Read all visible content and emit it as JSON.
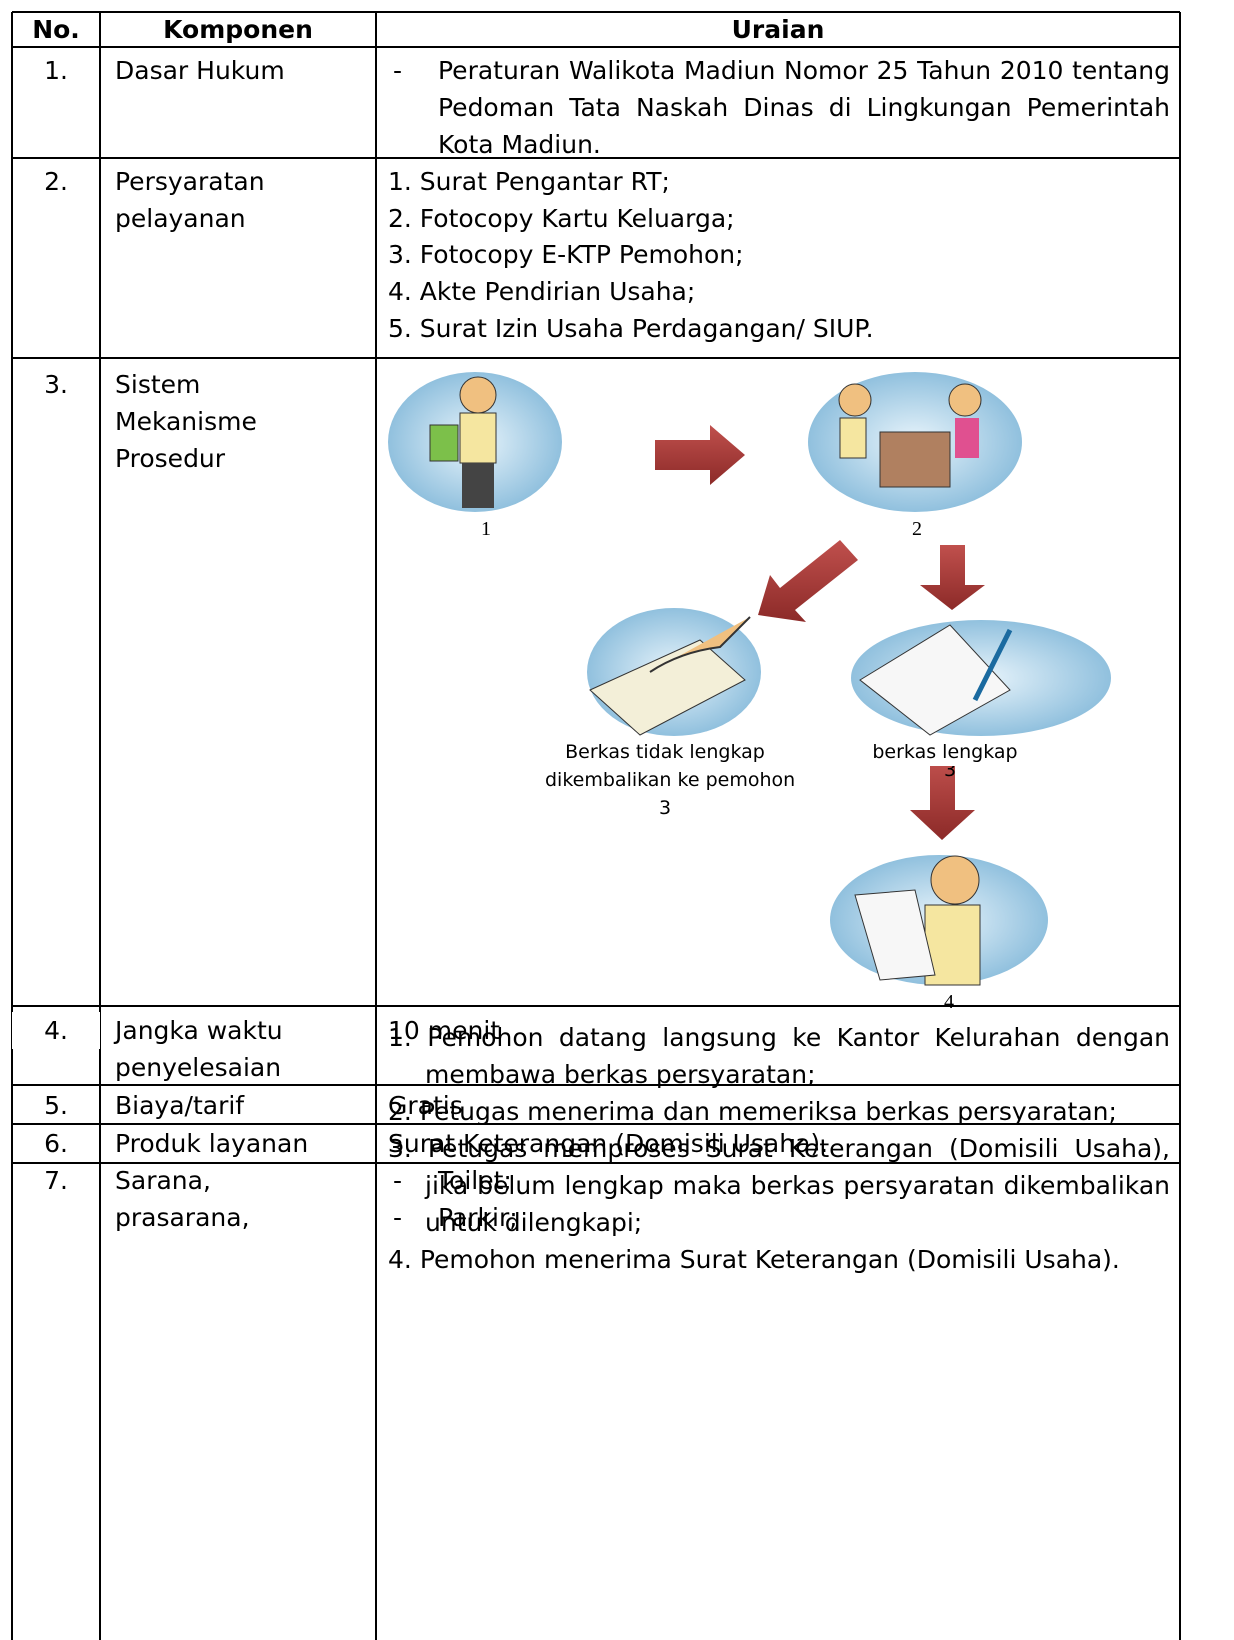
{
  "table": {
    "headers": [
      "No.",
      "Komponen",
      "Uraian"
    ],
    "rows": [
      {
        "no": "1.",
        "component": [
          "Dasar Hukum"
        ],
        "details": [
          {
            "bullet": "-",
            "text": "Peraturan Walikota Madiun Nomor 25 Tahun 2010 tentang Pedoman Tata Naskah Dinas di Lingkungan Pemerintah Kota Madiun."
          }
        ]
      },
      {
        "no": "2.",
        "component": [
          "Persyaratan",
          "pelayanan"
        ],
        "details": [
          "1. Surat  Pengantar RT;",
          "2. Fotocopy Kartu Keluarga;",
          "3. Fotocopy E-KTP Pemohon;",
          "4. Akte Pendirian Usaha;",
          "5. Surat Izin Usaha Perdagangan/ SIUP."
        ]
      },
      {
        "no": "3.",
        "component": [
          "Sistem",
          "Mekanisme",
          "Prosedur"
        ],
        "diagram": {
          "step1": "1",
          "step2": "2",
          "incomplete": [
            "Berkas tidak lengkap",
            "dikembalikan ke pemohon",
            "3"
          ],
          "complete": [
            "berkas lengkap",
            "3"
          ],
          "step4": "4"
        },
        "details": [
          {
            "number": "1.",
            "text": "Pemohon datang langsung ke Kantor Kelurahan dengan membawa berkas persyaratan;"
          },
          {
            "number": "2.",
            "text": "Petugas menerima dan memeriksa berkas persyaratan;"
          },
          {
            "number": "3.",
            "text": "Petugas memproses Surat Keterangan (Domisili Usaha), jika belum lengkap maka berkas persyaratan dikembalikan untuk dilengkapi;"
          },
          {
            "number": "4.",
            "text": "Pemohon menerima Surat Keterangan (Domisili Usaha)."
          }
        ]
      },
      {
        "no": "4.",
        "component": [
          "Jangka waktu",
          "penyelesaian"
        ],
        "details": [
          "10 menit"
        ]
      },
      {
        "no": "5.",
        "component": [
          "Biaya/tarif"
        ],
        "details": [
          "Gratis"
        ]
      },
      {
        "no": "6.",
        "component": [
          "Produk layanan"
        ],
        "details": [
          "Surat Keterangan (Domisili Usaha)."
        ]
      },
      {
        "no": "7.",
        "component": [
          "Sarana,",
          "prasarana,"
        ],
        "details": [
          {
            "bullet": "-",
            "text": "Toilet;"
          },
          {
            "bullet": "-",
            "text": "Parkir;"
          }
        ]
      }
    ]
  }
}
